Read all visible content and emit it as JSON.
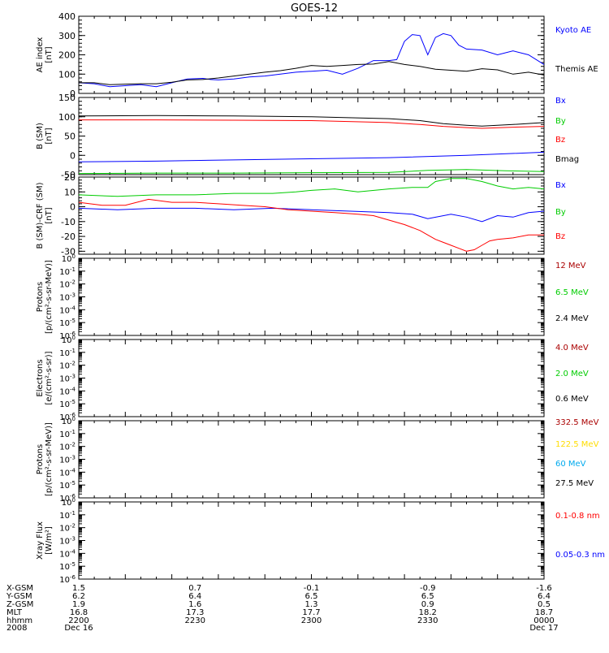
{
  "title": "GOES-12",
  "colors": {
    "blue": "#0000ff",
    "red": "#ff0000",
    "green": "#00cc00",
    "black": "#000000",
    "darkred": "#aa0000",
    "yellow": "#ffdd00",
    "cyan": "#00aaee"
  },
  "chart_data": [
    {
      "type": "line",
      "ylabel": [
        "AE index",
        "[nT]"
      ],
      "ylim": [
        0,
        400
      ],
      "yticks": [
        0,
        100,
        200,
        300,
        400
      ],
      "xlim": [
        0,
        60
      ],
      "series": [
        {
          "name": "Kyoto AE",
          "color": "blue",
          "x": [
            0,
            2,
            4,
            6,
            8,
            10,
            12,
            14,
            16,
            17,
            18,
            20,
            22,
            24,
            26,
            28,
            30,
            32,
            34,
            36,
            38,
            40,
            41,
            42,
            43,
            44,
            45,
            46,
            47,
            48,
            49,
            50,
            52,
            54,
            56,
            58,
            60
          ],
          "y": [
            55,
            50,
            35,
            40,
            45,
            35,
            55,
            75,
            78,
            72,
            70,
            75,
            85,
            90,
            100,
            110,
            115,
            120,
            100,
            130,
            170,
            170,
            175,
            270,
            305,
            300,
            200,
            290,
            310,
            300,
            250,
            230,
            225,
            200,
            220,
            200,
            150
          ]
        },
        {
          "name": "Themis AE",
          "color": "black",
          "x": [
            0,
            2,
            4,
            6,
            8,
            10,
            12,
            14,
            16,
            18,
            20,
            22,
            24,
            26,
            28,
            30,
            32,
            34,
            36,
            38,
            40,
            42,
            44,
            46,
            48,
            50,
            52,
            54,
            56,
            58,
            60
          ],
          "y": [
            55,
            55,
            45,
            48,
            50,
            50,
            58,
            70,
            72,
            80,
            90,
            100,
            110,
            118,
            130,
            145,
            140,
            145,
            150,
            152,
            165,
            150,
            140,
            125,
            120,
            115,
            128,
            122,
            100,
            110,
            95
          ]
        }
      ]
    },
    {
      "type": "line",
      "ylabel": [
        "B (SM)",
        "[nT]"
      ],
      "ylim": [
        -50,
        150
      ],
      "yticks": [
        -50,
        0,
        50,
        100,
        150
      ],
      "xlim": [
        0,
        60
      ],
      "series": [
        {
          "name": "Bx",
          "color": "blue",
          "x": [
            0,
            10,
            20,
            30,
            40,
            50,
            60
          ],
          "y": [
            -17,
            -15,
            -12,
            -9,
            -6,
            0,
            8
          ]
        },
        {
          "name": "By",
          "color": "green",
          "x": [
            0,
            10,
            20,
            30,
            40,
            45,
            50,
            55,
            60
          ],
          "y": [
            -47,
            -46,
            -46,
            -45,
            -44,
            -39,
            -37,
            -40,
            -42
          ]
        },
        {
          "name": "Bz",
          "color": "red",
          "x": [
            0,
            10,
            20,
            30,
            40,
            44,
            47,
            50,
            52,
            56,
            60
          ],
          "y": [
            92,
            92,
            91,
            90,
            85,
            80,
            75,
            72,
            70,
            73,
            75
          ]
        },
        {
          "name": "Bmag",
          "color": "black",
          "x": [
            0,
            10,
            20,
            30,
            40,
            44,
            47,
            50,
            52,
            56,
            60
          ],
          "y": [
            102,
            103,
            102,
            100,
            95,
            90,
            82,
            78,
            76,
            80,
            85
          ]
        }
      ]
    },
    {
      "type": "line",
      "ylabel": [
        "B (SM)-CRF (SM)",
        "[nT]"
      ],
      "ylim": [
        -32,
        20
      ],
      "yticks": [
        -30,
        -20,
        -10,
        0,
        10,
        20
      ],
      "xlim": [
        0,
        60
      ],
      "series": [
        {
          "name": "Bx",
          "color": "blue",
          "x": [
            0,
            5,
            10,
            15,
            20,
            25,
            30,
            35,
            40,
            43,
            45,
            48,
            50,
            52,
            54,
            56,
            58,
            60
          ],
          "y": [
            -1,
            -2,
            -1,
            -1,
            -2,
            -1,
            -2,
            -3,
            -4,
            -5,
            -8,
            -5,
            -7,
            -10,
            -6,
            -7,
            -4,
            -3
          ]
        },
        {
          "name": "By",
          "color": "green",
          "x": [
            0,
            5,
            10,
            15,
            20,
            25,
            28,
            30,
            33,
            36,
            40,
            43,
            45,
            46,
            48,
            50,
            52,
            54,
            56,
            58,
            60
          ],
          "y": [
            8,
            7,
            8,
            8,
            9,
            9,
            10,
            11,
            12,
            10,
            12,
            13,
            13,
            17,
            19,
            19,
            17,
            14,
            12,
            13,
            12
          ]
        },
        {
          "name": "Bz",
          "color": "red",
          "x": [
            0,
            3,
            6,
            9,
            12,
            15,
            18,
            21,
            24,
            27,
            30,
            33,
            36,
            38,
            40,
            42,
            43,
            44,
            45,
            46,
            47,
            48,
            49,
            50,
            51,
            52,
            53,
            54,
            56,
            58,
            60
          ],
          "y": [
            3,
            1,
            1,
            5,
            3,
            3,
            2,
            1,
            0,
            -2,
            -3,
            -4,
            -5,
            -6,
            -9,
            -12,
            -14,
            -16,
            -19,
            -22,
            -24,
            -26,
            -28,
            -30,
            -29,
            -26,
            -23,
            -22,
            -21,
            -19,
            -19
          ]
        }
      ]
    },
    {
      "type": "line",
      "yscale": "log",
      "ylabel": [
        "Protons",
        "[p/(cm²-s-sr-MeV)]"
      ],
      "ylim_exp": [
        -6,
        0
      ],
      "series": [
        {
          "name": "12 MeV",
          "color": "darkred",
          "values": []
        },
        {
          "name": "6.5 MeV",
          "color": "green",
          "values": []
        },
        {
          "name": "2.4 MeV",
          "color": "black",
          "values": []
        }
      ]
    },
    {
      "type": "line",
      "yscale": "log",
      "ylabel": [
        "Electrons",
        "[e/(cm²-s-sr)]"
      ],
      "ylim_exp": [
        -6,
        0
      ],
      "series": [
        {
          "name": "4.0 MeV",
          "color": "darkred",
          "values": []
        },
        {
          "name": "2.0 MeV",
          "color": "green",
          "values": []
        },
        {
          "name": "0.6 MeV",
          "color": "black",
          "values": []
        }
      ]
    },
    {
      "type": "line",
      "yscale": "log",
      "ylabel": [
        "Protons",
        "[p/(cm²-s-sr-MeV)]"
      ],
      "ylim_exp": [
        -6,
        0
      ],
      "series": [
        {
          "name": "332.5 MeV",
          "color": "darkred",
          "values": []
        },
        {
          "name": "122.5 MeV",
          "color": "yellow",
          "values": []
        },
        {
          "name": "60 MeV",
          "color": "cyan",
          "values": []
        },
        {
          "name": "27.5 MeV",
          "color": "black",
          "values": []
        }
      ]
    },
    {
      "type": "line",
      "yscale": "log",
      "ylabel": [
        "Xray Flux",
        "[W/m²]"
      ],
      "ylim_exp": [
        -6,
        0
      ],
      "series": [
        {
          "name": "0.1-0.8 nm",
          "color": "red",
          "values": []
        },
        {
          "name": "0.05-0.3 nm",
          "color": "blue",
          "values": []
        }
      ]
    }
  ],
  "x_axis_table": {
    "row_labels": [
      "X-GSM",
      "Y-GSM",
      "Z-GSM",
      "MLT",
      "hhmm",
      "2008"
    ],
    "columns": [
      {
        "x": 0,
        "values": [
          "1.5",
          "6.2",
          "1.9",
          "16.8",
          "2200",
          "Dec 16"
        ]
      },
      {
        "x": 15,
        "values": [
          "0.7",
          "6.4",
          "1.6",
          "17.3",
          "2230",
          ""
        ]
      },
      {
        "x": 30,
        "values": [
          "-0.1",
          "6.5",
          "1.3",
          "17.7",
          "2300",
          ""
        ]
      },
      {
        "x": 45,
        "values": [
          "-0.9",
          "6.5",
          "0.9",
          "18.2",
          "2330",
          ""
        ]
      },
      {
        "x": 60,
        "values": [
          "-1.6",
          "6.4",
          "0.5",
          "18.7",
          "0000",
          "Dec 17"
        ]
      }
    ]
  }
}
